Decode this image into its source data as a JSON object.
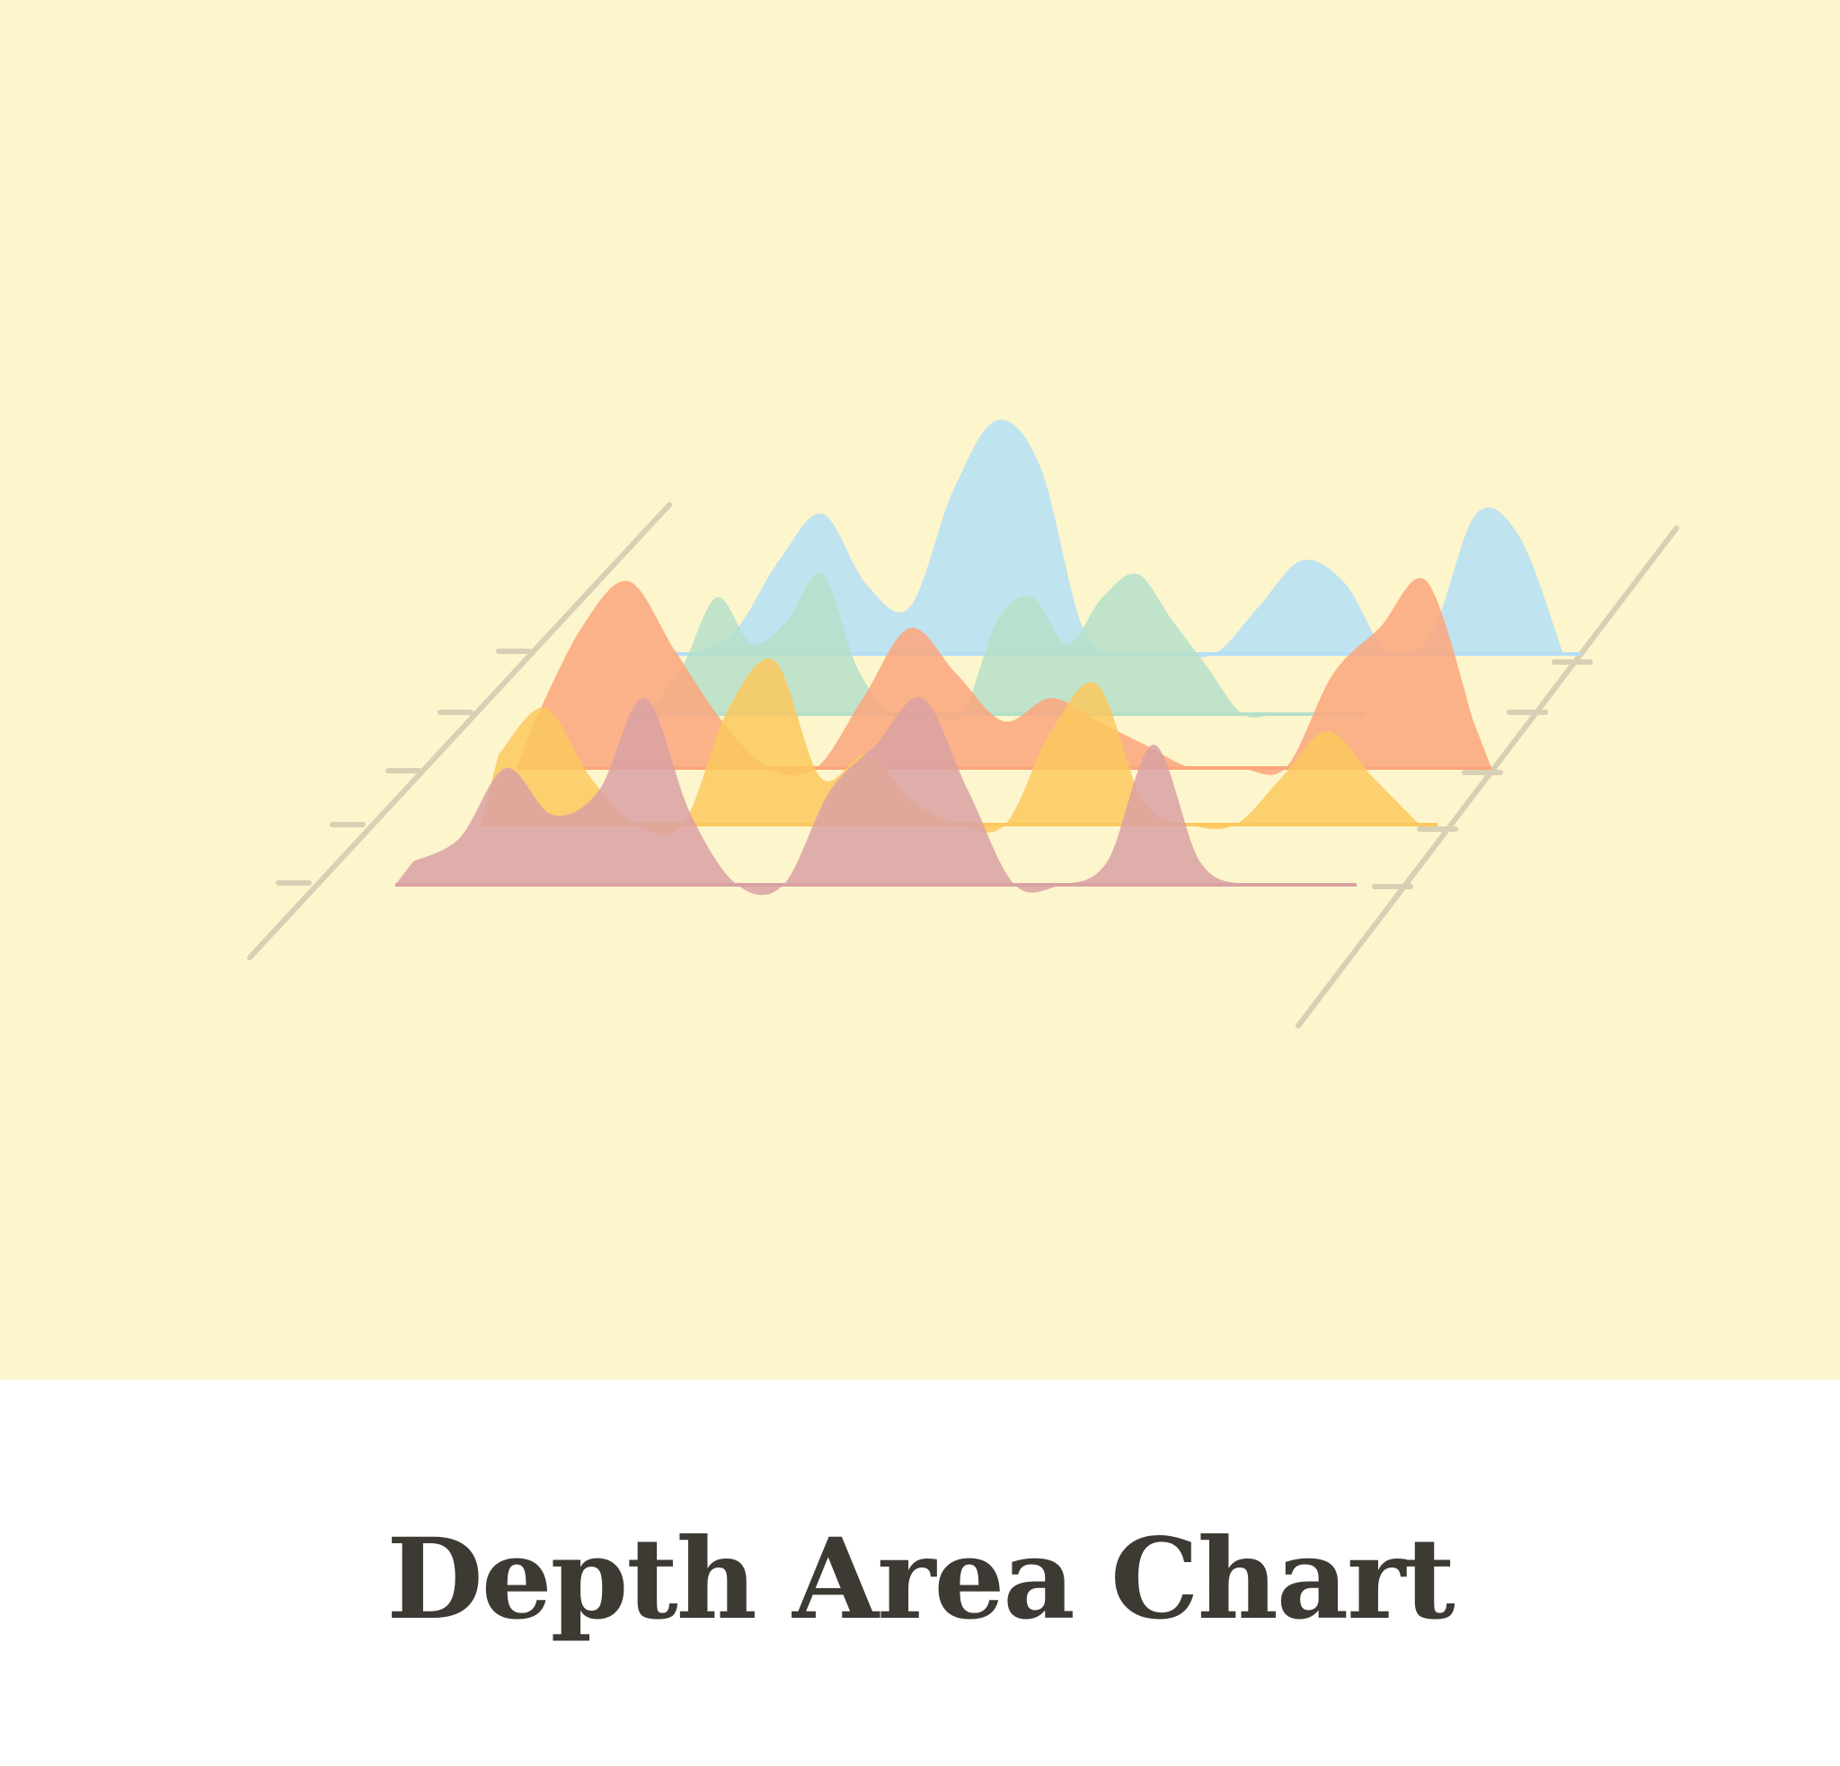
{
  "caption": "Depth Area Chart",
  "chart_data": {
    "type": "area",
    "style": "3d depth (ridgeline) area chart illustration",
    "x": [
      0,
      1,
      2,
      3,
      4,
      5,
      6,
      7,
      8,
      9,
      10,
      11,
      12,
      13,
      14,
      15,
      16,
      17,
      18,
      19,
      20
    ],
    "series": [
      {
        "color": "#b4dff5",
        "values": [
          0,
          1,
          4,
          6,
          3,
          2,
          7,
          10,
          8,
          1,
          0,
          0,
          0,
          2,
          4,
          3,
          0,
          1,
          6,
          5,
          0
        ]
      },
      {
        "color": "#b5dfc9",
        "values": [
          0,
          2,
          5,
          3,
          4,
          6,
          2,
          0,
          0,
          0,
          4,
          5,
          3,
          5,
          6,
          4,
          2,
          0,
          0,
          0,
          0
        ]
      },
      {
        "color": "#fca67c",
        "values": [
          2,
          6,
          8,
          5,
          2,
          0,
          0,
          3,
          6,
          4,
          2,
          3,
          2,
          1,
          0,
          0,
          0,
          4,
          6,
          8,
          2
        ]
      },
      {
        "color": "#fcc85e",
        "values": [
          3,
          5,
          2,
          0,
          0,
          5,
          7,
          2,
          3,
          1,
          0,
          0,
          4,
          6,
          1,
          0,
          0,
          2,
          4,
          2,
          0
        ]
      },
      {
        "color": "#d9a1a3",
        "values": [
          1,
          2,
          5,
          3,
          4,
          8,
          3,
          0,
          0,
          4,
          6,
          8,
          4,
          0,
          0,
          1,
          6,
          1,
          0,
          0,
          0
        ]
      }
    ],
    "grid": false,
    "legend": "none"
  }
}
